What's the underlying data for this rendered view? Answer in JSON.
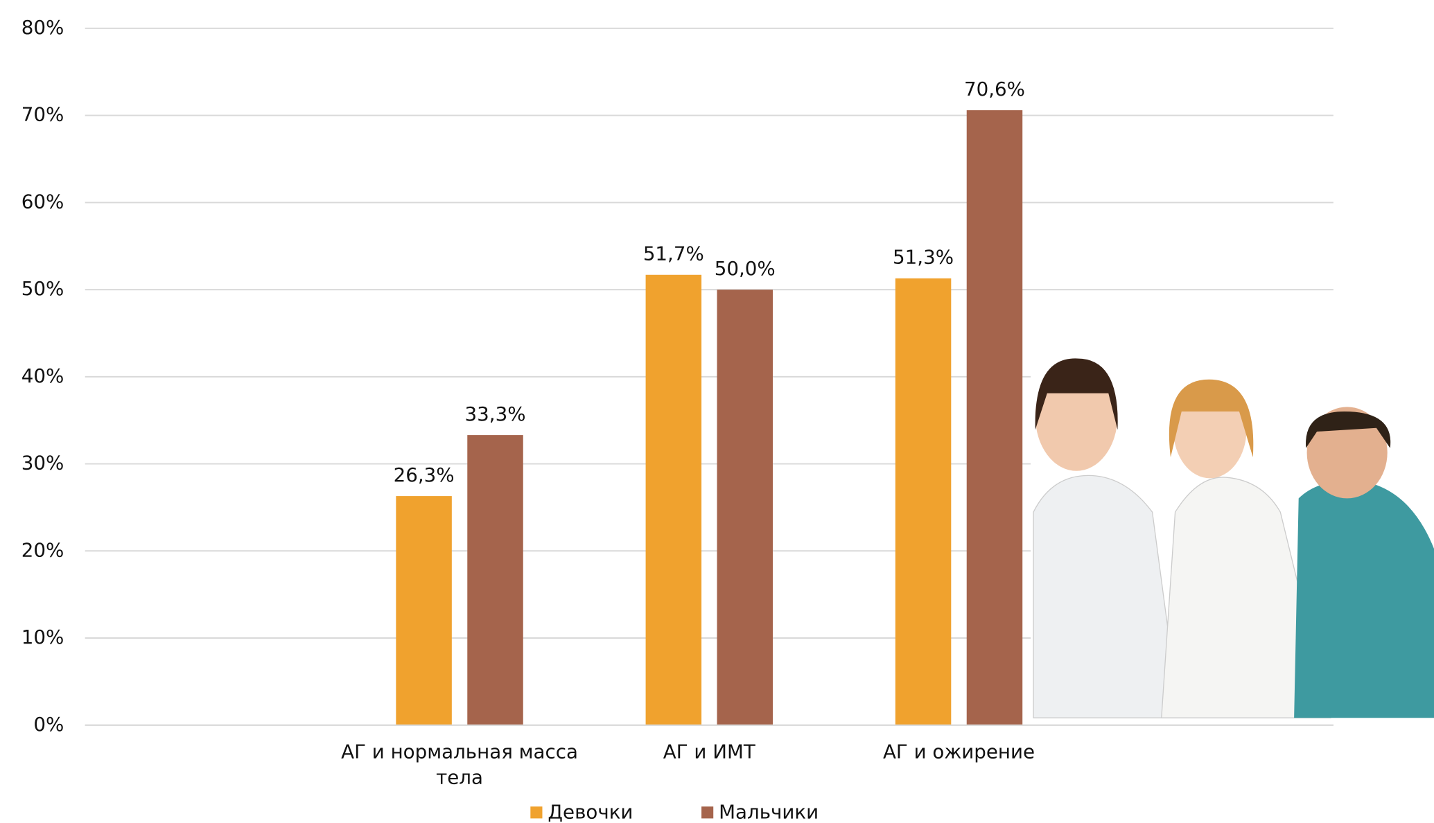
{
  "chart_data": {
    "type": "bar",
    "categories": [
      null,
      "АГ и нормальная масса тела",
      "АГ и ИМТ",
      "АГ и ожирение",
      null
    ],
    "series": [
      {
        "name": "Девочки",
        "color": "#f0a22e",
        "values": [
          null,
          26.3,
          51.7,
          51.3,
          null
        ],
        "value_labels": [
          null,
          "26,3%",
          "51,7%",
          "51,3%",
          null
        ]
      },
      {
        "name": "Мальчики",
        "color": "#a5644c",
        "values": [
          null,
          33.3,
          50.0,
          70.6,
          null
        ],
        "value_labels": [
          null,
          "33,3%",
          "50,0%",
          "70,6%",
          null
        ]
      }
    ],
    "ylim": [
      0,
      80
    ],
    "yticks": [
      {
        "value": 0,
        "label": "0%"
      },
      {
        "value": 10,
        "label": "10%"
      },
      {
        "value": 20,
        "label": "20%"
      },
      {
        "value": 30,
        "label": "30%"
      },
      {
        "value": 40,
        "label": "40%"
      },
      {
        "value": 50,
        "label": "50%"
      },
      {
        "value": 60,
        "label": "60%"
      },
      {
        "value": 70,
        "label": "70%"
      },
      {
        "value": 80,
        "label": "80%"
      }
    ],
    "grid": true,
    "legend": "bottom"
  }
}
